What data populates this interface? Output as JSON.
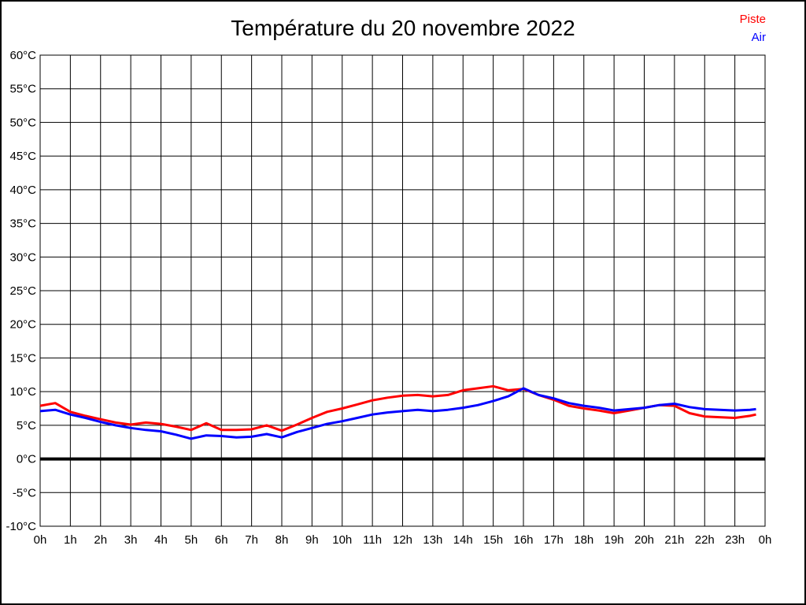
{
  "title": "Température du 20 novembre 2022",
  "legend": {
    "piste_label": "Piste",
    "air_label": "Air"
  },
  "colors": {
    "piste": "#ff0000",
    "air": "#0000ff",
    "grid": "#000000",
    "zero_line": "#000000",
    "text": "#000000"
  },
  "chart_data": {
    "type": "line",
    "title": "Température du 20 novembre 2022",
    "xlabel": "",
    "ylabel": "",
    "xlim": [
      0,
      24
    ],
    "ylim": [
      -10,
      60
    ],
    "grid": true,
    "legend_position": "top-right",
    "y_ticks": [
      60,
      55,
      50,
      45,
      40,
      35,
      30,
      25,
      20,
      15,
      10,
      5,
      0,
      -5,
      -10
    ],
    "y_tick_labels": [
      "60°C",
      "55°C",
      "50°C",
      "45°C",
      "40°C",
      "35°C",
      "30°C",
      "25°C",
      "20°C",
      "15°C",
      "10°C",
      "5°C",
      "0°C",
      "-5°C",
      "-10°C"
    ],
    "x_ticks": [
      0,
      1,
      2,
      3,
      4,
      5,
      6,
      7,
      8,
      9,
      10,
      11,
      12,
      13,
      14,
      15,
      16,
      17,
      18,
      19,
      20,
      21,
      22,
      23,
      24
    ],
    "x_tick_labels": [
      "0h",
      "1h",
      "2h",
      "3h",
      "4h",
      "5h",
      "6h",
      "7h",
      "8h",
      "9h",
      "10h",
      "11h",
      "12h",
      "13h",
      "14h",
      "15h",
      "16h",
      "17h",
      "18h",
      "19h",
      "20h",
      "21h",
      "22h",
      "23h",
      "0h"
    ],
    "zero_line_value": 0,
    "x": [
      0,
      0.5,
      1,
      1.5,
      2,
      2.5,
      3,
      3.5,
      4,
      4.5,
      5,
      5.5,
      6,
      6.5,
      7,
      7.5,
      8,
      8.5,
      9,
      9.5,
      10,
      10.5,
      11,
      11.5,
      12,
      12.5,
      13,
      13.5,
      14,
      14.5,
      15,
      15.5,
      16,
      16.5,
      17,
      17.5,
      18,
      18.5,
      19,
      19.5,
      20,
      20.5,
      21,
      21.5,
      22,
      22.5,
      23,
      23.5,
      23.7
    ],
    "series": [
      {
        "name": "Piste",
        "color": "#ff0000",
        "values": [
          7.9,
          8.3,
          7.0,
          6.4,
          5.9,
          5.4,
          5.1,
          5.4,
          5.2,
          4.8,
          4.3,
          5.3,
          4.3,
          4.3,
          4.4,
          5.0,
          4.2,
          5.1,
          6.1,
          7.0,
          7.5,
          8.1,
          8.7,
          9.1,
          9.4,
          9.5,
          9.3,
          9.5,
          10.2,
          10.5,
          10.8,
          10.2,
          10.4,
          9.5,
          8.8,
          7.9,
          7.5,
          7.2,
          6.8,
          7.2,
          7.6,
          8.0,
          7.9,
          6.8,
          6.3,
          6.2,
          6.1,
          6.4,
          6.6
        ]
      },
      {
        "name": "Air",
        "color": "#0000ff",
        "values": [
          7.1,
          7.3,
          6.6,
          6.1,
          5.5,
          5.0,
          4.6,
          4.3,
          4.1,
          3.6,
          3.0,
          3.5,
          3.4,
          3.2,
          3.3,
          3.7,
          3.2,
          4.0,
          4.6,
          5.2,
          5.6,
          6.1,
          6.6,
          6.9,
          7.1,
          7.3,
          7.1,
          7.3,
          7.6,
          8.0,
          8.6,
          9.3,
          10.5,
          9.5,
          9.0,
          8.3,
          7.9,
          7.6,
          7.2,
          7.4,
          7.6,
          8.0,
          8.2,
          7.7,
          7.4,
          7.3,
          7.2,
          7.3,
          7.4
        ]
      }
    ]
  }
}
